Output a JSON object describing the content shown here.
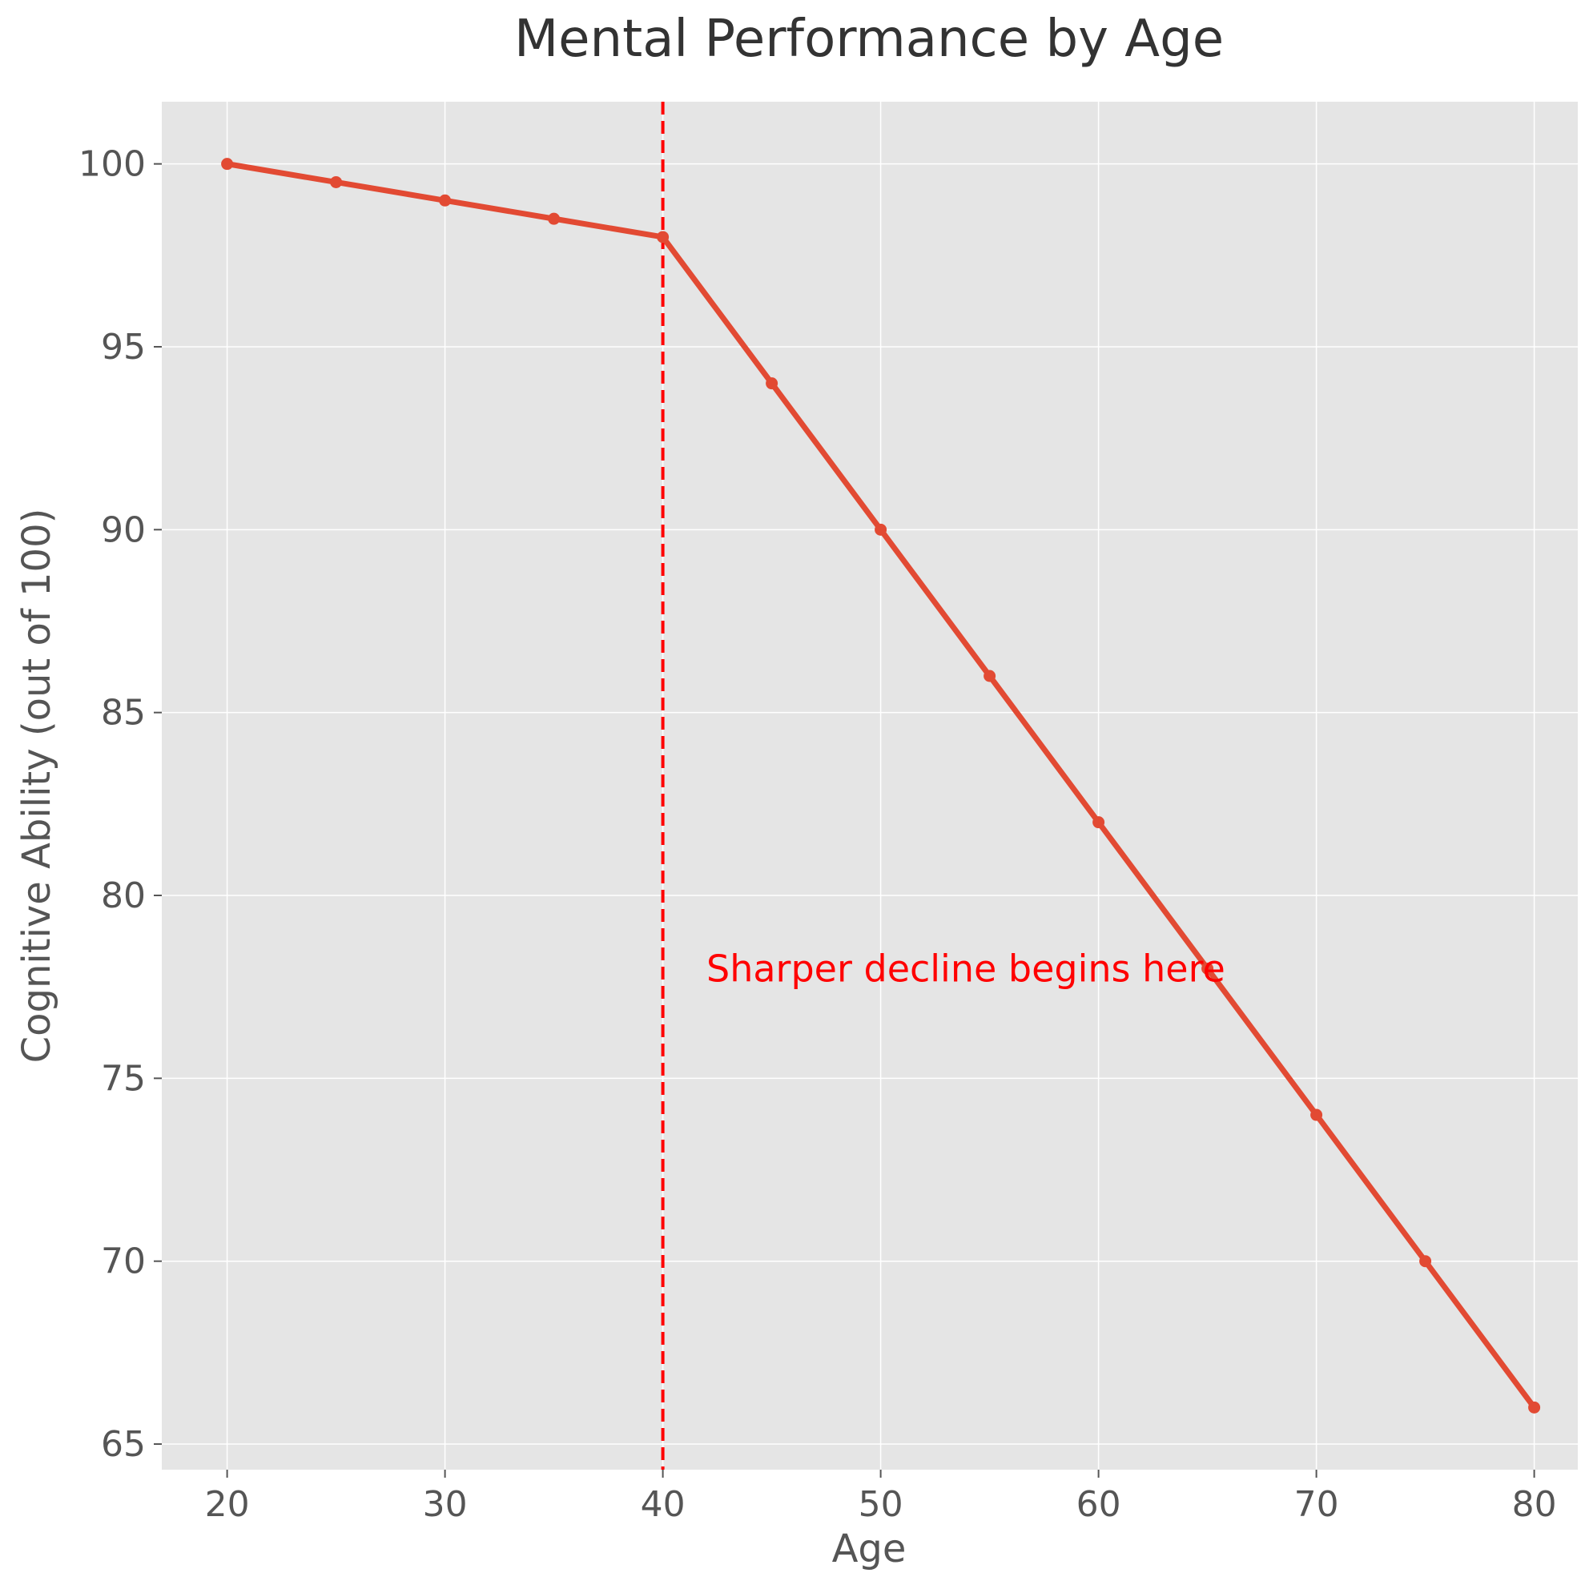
{
  "chart_data": {
    "type": "line",
    "title": "Mental Performance by Age",
    "xlabel": "Age",
    "ylabel": "Cognitive Ability (out of 100)",
    "x": [
      20,
      25,
      30,
      35,
      40,
      45,
      50,
      55,
      60,
      65,
      70,
      75,
      80
    ],
    "series": [
      {
        "values": [
          100,
          99.5,
          99,
          98.5,
          98,
          94,
          90,
          86,
          82,
          78,
          74,
          70,
          66
        ]
      }
    ],
    "xlim": [
      17,
      82
    ],
    "ylim": [
      64.3,
      101.7
    ],
    "xticks": [
      20,
      30,
      40,
      50,
      60,
      70,
      80
    ],
    "yticks": [
      65,
      70,
      75,
      80,
      85,
      90,
      95,
      100
    ],
    "grid": true,
    "reference_line": {
      "axis": "x",
      "value": 40,
      "style": "dashed",
      "color": "#ff0000"
    },
    "annotation": {
      "text": "Sharper decline begins here",
      "x": 42,
      "y": 78,
      "color": "#ff0000"
    },
    "colors": {
      "line": "#e24a33",
      "plot_background": "#e5e5e5"
    }
  }
}
